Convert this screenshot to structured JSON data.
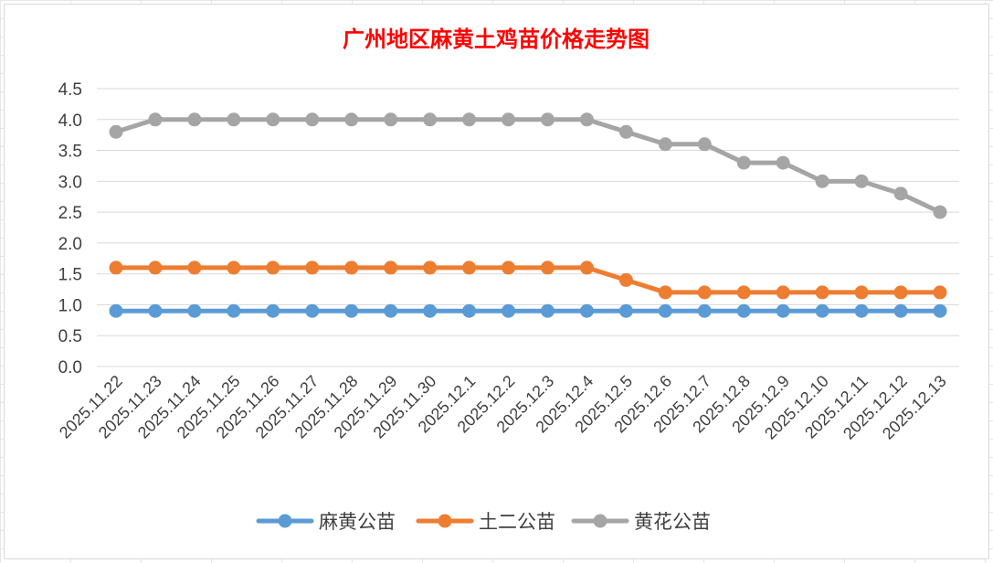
{
  "chart_data": {
    "type": "line",
    "title": "广州地区麻黄土鸡苗价格走势图",
    "xlabel": "",
    "ylabel": "",
    "ylim": [
      0,
      4.5
    ],
    "ytick_step": 0.5,
    "grid": true,
    "legend_position": "bottom",
    "categories": [
      "2025.11.22",
      "2025.11.23",
      "2025.11.24",
      "2025.11.25",
      "2025.11.26",
      "2025.11.27",
      "2025.11.28",
      "2025.11.29",
      "2025.11.30",
      "2025.12.1",
      "2025.12.2",
      "2025.12.3",
      "2025.12.4",
      "2025.12.5",
      "2025.12.6",
      "2025.12.7",
      "2025.12.8",
      "2025.12.9",
      "2025.12.10",
      "2025.12.11",
      "2025.12.12",
      "2025.12.13"
    ],
    "series": [
      {
        "name": "麻黄公苗",
        "color": "#5b9bd5",
        "values": [
          0.9,
          0.9,
          0.9,
          0.9,
          0.9,
          0.9,
          0.9,
          0.9,
          0.9,
          0.9,
          0.9,
          0.9,
          0.9,
          0.9,
          0.9,
          0.9,
          0.9,
          0.9,
          0.9,
          0.9,
          0.9,
          0.9
        ]
      },
      {
        "name": "土二公苗",
        "color": "#ed7d31",
        "values": [
          1.6,
          1.6,
          1.6,
          1.6,
          1.6,
          1.6,
          1.6,
          1.6,
          1.6,
          1.6,
          1.6,
          1.6,
          1.6,
          1.4,
          1.2,
          1.2,
          1.2,
          1.2,
          1.2,
          1.2,
          1.2,
          1.2
        ]
      },
      {
        "name": "黄花公苗",
        "color": "#a5a5a5",
        "values": [
          3.8,
          4.0,
          4.0,
          4.0,
          4.0,
          4.0,
          4.0,
          4.0,
          4.0,
          4.0,
          4.0,
          4.0,
          4.0,
          3.8,
          3.6,
          3.6,
          3.3,
          3.3,
          3.0,
          3.0,
          2.8,
          2.5
        ]
      }
    ],
    "title_color": "#ff0000",
    "grid_color": "#d9d9d9"
  }
}
